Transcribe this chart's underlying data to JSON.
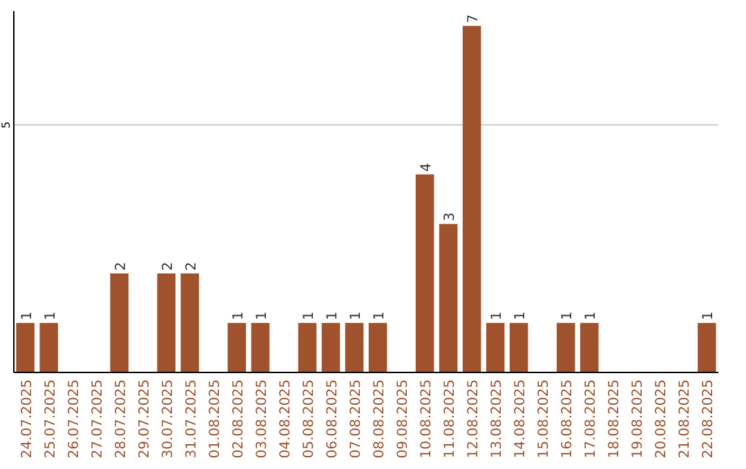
{
  "chart_data": {
    "type": "bar",
    "categories": [
      "24.07.2025",
      "25.07.2025",
      "26.07.2025",
      "27.07.2025",
      "28.07.2025",
      "29.07.2025",
      "30.07.2025",
      "31.07.2025",
      "01.08.2025",
      "02.08.2025",
      "03.08.2025",
      "04.08.2025",
      "05.08.2025",
      "06.08.2025",
      "07.08.2025",
      "08.08.2025",
      "09.08.2025",
      "10.08.2025",
      "11.08.2025",
      "12.08.2025",
      "13.08.2025",
      "14.08.2025",
      "15.08.2025",
      "16.08.2025",
      "17.08.2025",
      "18.08.2025",
      "19.08.2025",
      "20.08.2025",
      "21.08.2025",
      "22.08.2025"
    ],
    "values": [
      1,
      1,
      0,
      0,
      2,
      0,
      2,
      2,
      0,
      1,
      1,
      0,
      1,
      1,
      1,
      1,
      0,
      4,
      3,
      7,
      1,
      1,
      0,
      1,
      1,
      0,
      0,
      0,
      0,
      1
    ],
    "value_labels": [
      "1",
      "1",
      null,
      null,
      "2",
      null,
      "2",
      "2",
      null,
      "1",
      "1",
      null,
      "1",
      "1",
      "1",
      "1",
      null,
      "4",
      "3",
      "7",
      "1",
      "1",
      null,
      "1",
      "1",
      null,
      null,
      null,
      null,
      "1"
    ],
    "color": "#a0522d",
    "ylim": [
      0,
      7.3
    ],
    "yticks": [
      5
    ],
    "grid": "y"
  }
}
